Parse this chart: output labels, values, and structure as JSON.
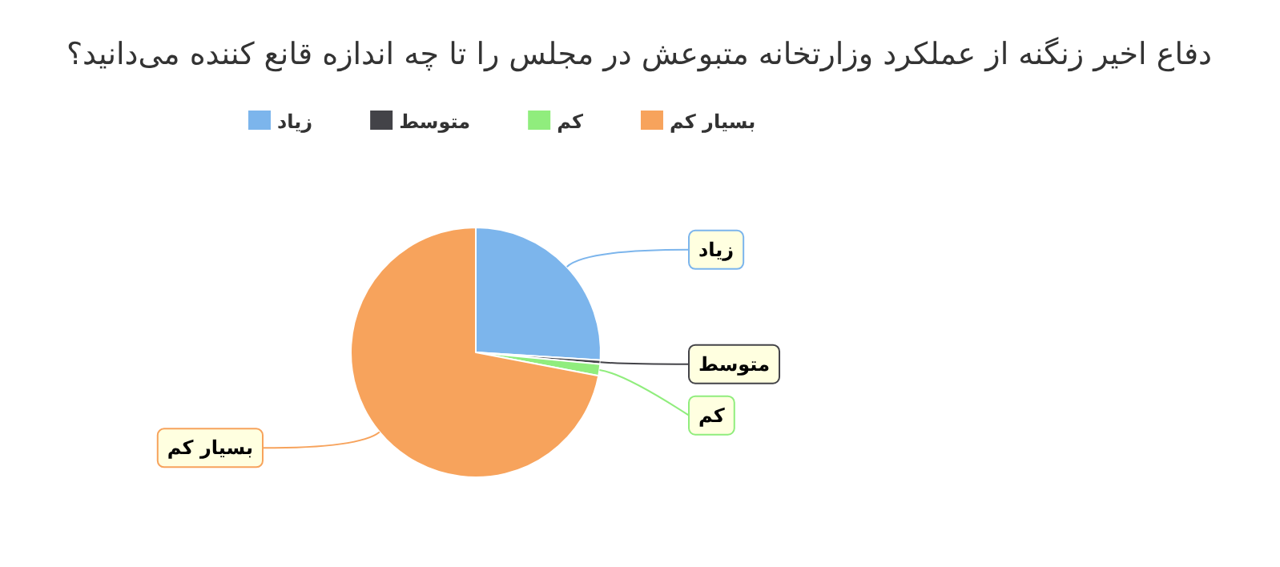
{
  "chart_data": {
    "type": "pie",
    "title": "دفاع اخیر زنگنه از عملکرد وزارتخانه متبوعش در مجلس را تا چه اندازه قانع کننده می‌دانید؟",
    "categories": [
      "زیاد",
      "متوسط",
      "کم",
      "بسیار کم"
    ],
    "values": [
      26,
      0.5,
      1.5,
      72
    ],
    "colors": [
      "#7cb5ec",
      "#434348",
      "#90ed7d",
      "#f7a35c"
    ],
    "legend": "top"
  }
}
